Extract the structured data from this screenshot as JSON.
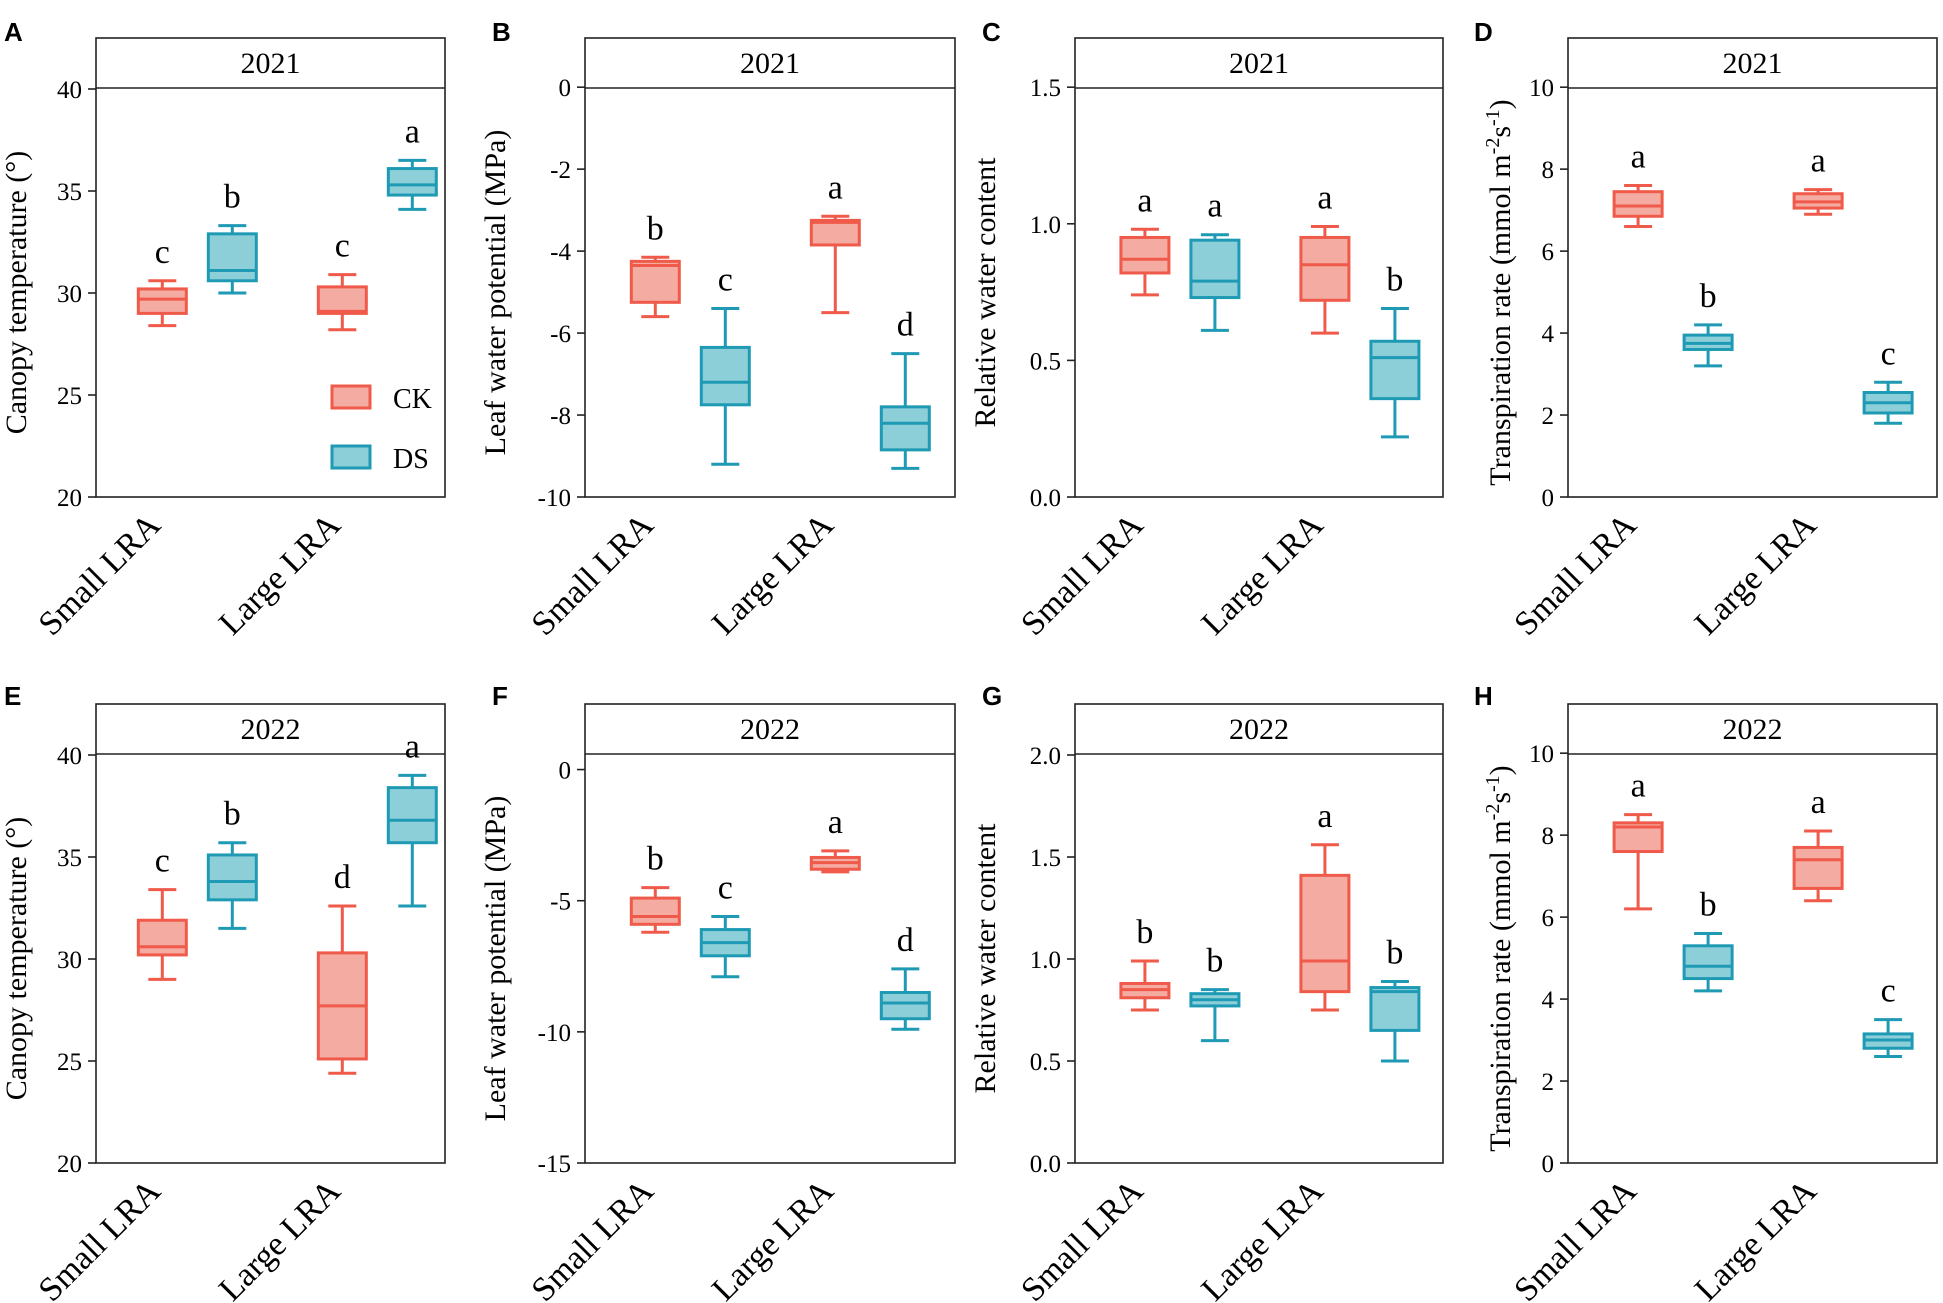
{
  "colors": {
    "CK": {
      "stroke": "#ef5a4a",
      "fill": "#f4aba1"
    },
    "DS": {
      "stroke": "#1f9ab4",
      "fill": "#8ccfd9"
    }
  },
  "legend": [
    {
      "key": "CK",
      "label": "CK"
    },
    {
      "key": "DS",
      "label": "DS"
    }
  ],
  "chart_data": [
    {
      "panel": "A",
      "strip": "2021",
      "type": "box",
      "ylabel": "Canopy temperature (°)",
      "ylim": [
        20,
        42.5
      ],
      "yticks": [
        20,
        25,
        30,
        35,
        40
      ],
      "categories": [
        "Small LRA",
        "Large LRA"
      ],
      "boxes": [
        {
          "category": "Small LRA",
          "group": "CK",
          "min": 28.4,
          "q1": 29.0,
          "median": 29.7,
          "q3": 30.2,
          "max": 30.6,
          "letter": "c"
        },
        {
          "category": "Small LRA",
          "group": "DS",
          "min": 30.0,
          "q1": 30.6,
          "median": 31.1,
          "q3": 32.9,
          "max": 33.3,
          "letter": "b"
        },
        {
          "category": "Large LRA",
          "group": "CK",
          "min": 28.2,
          "q1": 29.0,
          "median": 29.1,
          "q3": 30.3,
          "max": 30.9,
          "letter": "c"
        },
        {
          "category": "Large LRA",
          "group": "DS",
          "min": 34.1,
          "q1": 34.8,
          "median": 35.3,
          "q3": 36.1,
          "max": 36.5,
          "letter": "a"
        }
      ]
    },
    {
      "panel": "B",
      "strip": "2021",
      "type": "box",
      "ylabel": "Leaf water potential (MPa)",
      "ylim": [
        -10,
        1.2
      ],
      "yticks": [
        0,
        -2,
        -4,
        -6,
        -8,
        -10
      ],
      "categories": [
        "Small LRA",
        "Large LRA"
      ],
      "boxes": [
        {
          "category": "Small LRA",
          "group": "CK",
          "min": -5.6,
          "q1": -5.25,
          "median": -4.35,
          "q3": -4.25,
          "max": -4.15,
          "letter": "b"
        },
        {
          "category": "Small LRA",
          "group": "DS",
          "min": -9.2,
          "q1": -7.75,
          "median": -7.2,
          "q3": -6.35,
          "max": -5.4,
          "letter": "c"
        },
        {
          "category": "Large LRA",
          "group": "CK",
          "min": -5.5,
          "q1": -3.85,
          "median": -3.3,
          "q3": -3.25,
          "max": -3.15,
          "letter": "a"
        },
        {
          "category": "Large LRA",
          "group": "DS",
          "min": -9.3,
          "q1": -8.85,
          "median": -8.2,
          "q3": -7.8,
          "max": -6.5,
          "letter": "d"
        }
      ]
    },
    {
      "panel": "C",
      "strip": "2021",
      "type": "box",
      "ylabel": "Relative water content",
      "ylim": [
        0,
        1.68
      ],
      "yticks": [
        0.0,
        0.5,
        1.0,
        1.5
      ],
      "categories": [
        "Small LRA",
        "Large LRA"
      ],
      "boxes": [
        {
          "category": "Small LRA",
          "group": "CK",
          "min": 0.74,
          "q1": 0.82,
          "median": 0.87,
          "q3": 0.95,
          "max": 0.98,
          "letter": "a"
        },
        {
          "category": "Small LRA",
          "group": "DS",
          "min": 0.61,
          "q1": 0.73,
          "median": 0.79,
          "q3": 0.94,
          "max": 0.96,
          "letter": "a"
        },
        {
          "category": "Large LRA",
          "group": "CK",
          "min": 0.6,
          "q1": 0.72,
          "median": 0.85,
          "q3": 0.95,
          "max": 0.99,
          "letter": "a"
        },
        {
          "category": "Large LRA",
          "group": "DS",
          "min": 0.22,
          "q1": 0.36,
          "median": 0.51,
          "q3": 0.57,
          "max": 0.69,
          "letter": "b"
        }
      ]
    },
    {
      "panel": "D",
      "strip": "2021",
      "type": "box",
      "ylabel": "Transpiration rate (mmol m-2s-1)",
      "ylim": [
        0,
        11.2
      ],
      "yticks": [
        0,
        2,
        4,
        6,
        8,
        10
      ],
      "categories": [
        "Small LRA",
        "Large LRA"
      ],
      "boxes": [
        {
          "category": "Small LRA",
          "group": "CK",
          "min": 6.6,
          "q1": 6.85,
          "median": 7.1,
          "q3": 7.45,
          "max": 7.6,
          "letter": "a"
        },
        {
          "category": "Small LRA",
          "group": "DS",
          "min": 3.2,
          "q1": 3.6,
          "median": 3.75,
          "q3": 3.95,
          "max": 4.2,
          "letter": "b"
        },
        {
          "category": "Large LRA",
          "group": "CK",
          "min": 6.9,
          "q1": 7.05,
          "median": 7.2,
          "q3": 7.4,
          "max": 7.5,
          "letter": "a"
        },
        {
          "category": "Large LRA",
          "group": "DS",
          "min": 1.8,
          "q1": 2.05,
          "median": 2.3,
          "q3": 2.55,
          "max": 2.8,
          "letter": "c"
        }
      ]
    },
    {
      "panel": "E",
      "strip": "2022",
      "type": "box",
      "ylabel": "Canopy temperature (°)",
      "ylim": [
        20,
        42.5
      ],
      "yticks": [
        20,
        25,
        30,
        35,
        40
      ],
      "categories": [
        "Small LRA",
        "Large LRA"
      ],
      "boxes": [
        {
          "category": "Small LRA",
          "group": "CK",
          "min": 29.0,
          "q1": 30.2,
          "median": 30.6,
          "q3": 31.9,
          "max": 33.4,
          "letter": "c"
        },
        {
          "category": "Small LRA",
          "group": "DS",
          "min": 31.5,
          "q1": 32.9,
          "median": 33.8,
          "q3": 35.1,
          "max": 35.7,
          "letter": "b"
        },
        {
          "category": "Large LRA",
          "group": "CK",
          "min": 24.4,
          "q1": 25.1,
          "median": 27.7,
          "q3": 30.3,
          "max": 32.6,
          "letter": "d"
        },
        {
          "category": "Large LRA",
          "group": "DS",
          "min": 32.6,
          "q1": 35.7,
          "median": 36.8,
          "q3": 38.4,
          "max": 39.0,
          "letter": "a"
        }
      ]
    },
    {
      "panel": "F",
      "strip": "2022",
      "type": "box",
      "ylabel": "Leaf water potential (MPa)",
      "ylim": [
        -15,
        2.5
      ],
      "yticks": [
        0,
        -5,
        -10,
        -15
      ],
      "categories": [
        "Small LRA",
        "Large LRA"
      ],
      "boxes": [
        {
          "category": "Small LRA",
          "group": "CK",
          "min": -6.2,
          "q1": -5.9,
          "median": -5.6,
          "q3": -4.9,
          "max": -4.5,
          "letter": "b"
        },
        {
          "category": "Small LRA",
          "group": "DS",
          "min": -7.9,
          "q1": -7.1,
          "median": -6.6,
          "q3": -6.1,
          "max": -5.6,
          "letter": "c"
        },
        {
          "category": "Large LRA",
          "group": "CK",
          "min": -3.9,
          "q1": -3.8,
          "median": -3.55,
          "q3": -3.35,
          "max": -3.1,
          "letter": "a"
        },
        {
          "category": "Large LRA",
          "group": "DS",
          "min": -9.9,
          "q1": -9.5,
          "median": -8.9,
          "q3": -8.5,
          "max": -7.6,
          "letter": "d"
        }
      ]
    },
    {
      "panel": "G",
      "strip": "2022",
      "type": "box",
      "ylabel": "Relative water content",
      "ylim": [
        0,
        2.25
      ],
      "yticks": [
        0.0,
        0.5,
        1.0,
        1.5,
        2.0
      ],
      "categories": [
        "Small LRA",
        "Large LRA"
      ],
      "boxes": [
        {
          "category": "Small LRA",
          "group": "CK",
          "min": 0.75,
          "q1": 0.81,
          "median": 0.85,
          "q3": 0.88,
          "max": 0.99,
          "letter": "b"
        },
        {
          "category": "Small LRA",
          "group": "DS",
          "min": 0.6,
          "q1": 0.77,
          "median": 0.8,
          "q3": 0.83,
          "max": 0.85,
          "letter": "b"
        },
        {
          "category": "Large LRA",
          "group": "CK",
          "min": 0.75,
          "q1": 0.84,
          "median": 0.99,
          "q3": 1.41,
          "max": 1.56,
          "letter": "a"
        },
        {
          "category": "Large LRA",
          "group": "DS",
          "min": 0.5,
          "q1": 0.65,
          "median": 0.84,
          "q3": 0.86,
          "max": 0.89,
          "letter": "b"
        }
      ]
    },
    {
      "panel": "H",
      "strip": "2022",
      "type": "box",
      "ylabel": "Transpiration rate (mmol m-2s-1)",
      "ylim": [
        0,
        11.2
      ],
      "yticks": [
        0,
        2,
        4,
        6,
        8,
        10
      ],
      "categories": [
        "Small LRA",
        "Large LRA"
      ],
      "boxes": [
        {
          "category": "Small LRA",
          "group": "CK",
          "min": 6.2,
          "q1": 7.6,
          "median": 8.2,
          "q3": 8.3,
          "max": 8.5,
          "letter": "a"
        },
        {
          "category": "Small LRA",
          "group": "DS",
          "min": 4.2,
          "q1": 4.5,
          "median": 4.8,
          "q3": 5.3,
          "max": 5.6,
          "letter": "b"
        },
        {
          "category": "Large LRA",
          "group": "CK",
          "min": 6.4,
          "q1": 6.7,
          "median": 7.4,
          "q3": 7.7,
          "max": 8.1,
          "letter": "a"
        },
        {
          "category": "Large LRA",
          "group": "DS",
          "min": 2.6,
          "q1": 2.8,
          "median": 3.0,
          "q3": 3.15,
          "max": 3.5,
          "letter": "c"
        }
      ]
    }
  ]
}
